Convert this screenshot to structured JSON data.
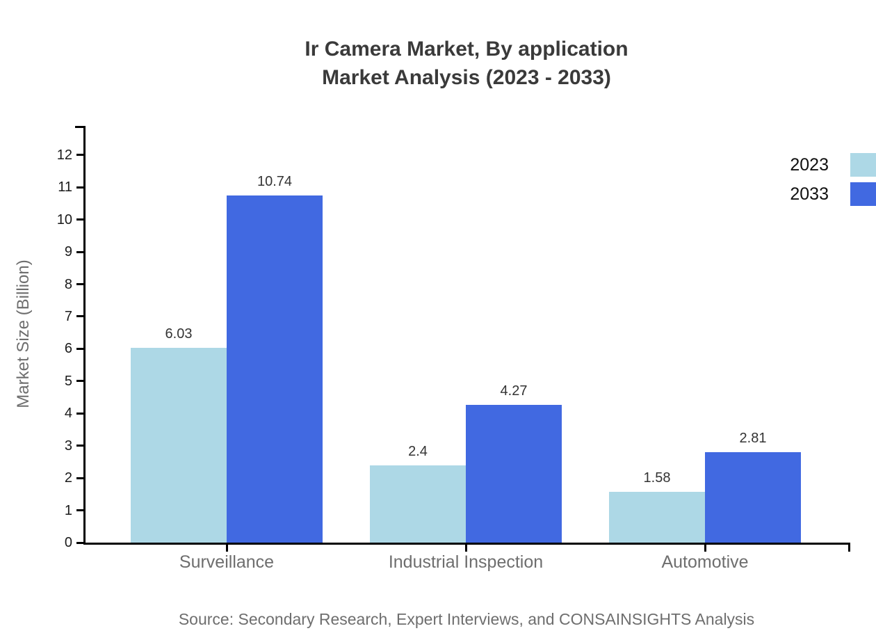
{
  "title": {
    "line1": "Ir Camera Market, By application",
    "line2": "Market Analysis (2023 - 2033)"
  },
  "source": "Source: Secondary Research, Expert Interviews, and CONSAINSIGHTS Analysis",
  "chart_data": {
    "type": "bar",
    "title": "Ir Camera Market, By application Market Analysis (2023 - 2033)",
    "categories": [
      "Surveillance",
      "Industrial Inspection",
      "Automotive"
    ],
    "series": [
      {
        "name": "2023",
        "color": "#ADD8E6",
        "values": [
          6.03,
          2.4,
          1.58
        ]
      },
      {
        "name": "2033",
        "color": "#4169E1",
        "values": [
          10.74,
          4.27,
          2.81
        ]
      }
    ],
    "xlabel": "",
    "ylabel": "Market Size (Billion)",
    "ylim": [
      0,
      12.9
    ],
    "yticks": [
      0,
      1,
      2,
      3,
      4,
      5,
      6,
      7,
      8,
      9,
      10,
      11,
      12
    ],
    "grid": false,
    "legend_position": "top-right",
    "axis_color": "#000000",
    "title_color": "#3a3a3a",
    "label_color": "#6e6e6e"
  }
}
